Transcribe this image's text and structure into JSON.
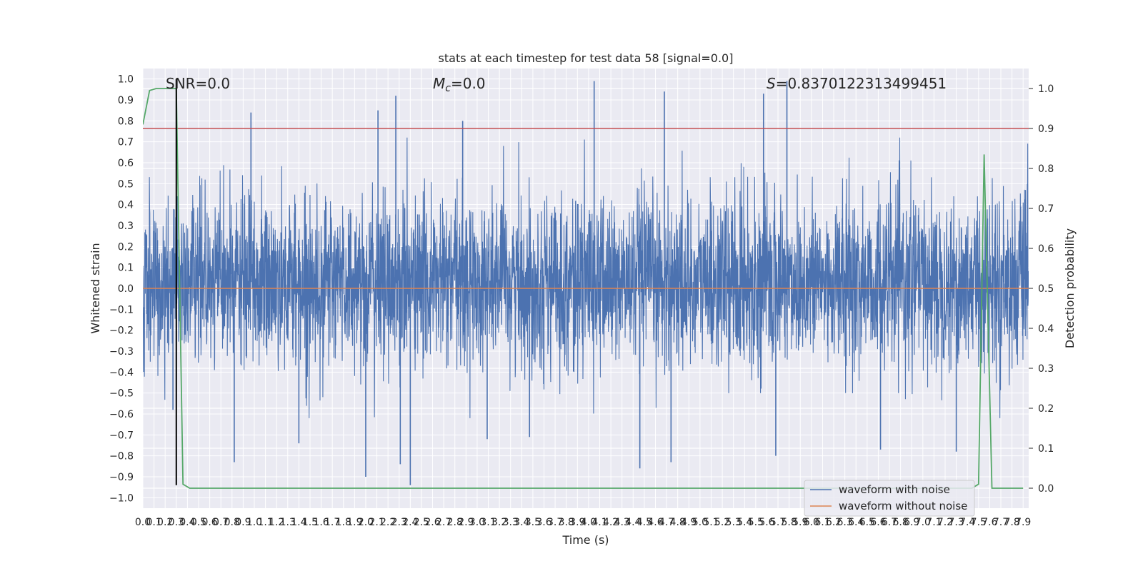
{
  "chart_data": {
    "type": "line",
    "title": "stats at each timestep for test data 58 [signal=0.0]",
    "xlabel": "Time (s)",
    "ylabel": "Whitened strain",
    "y2label": "Detection probability",
    "xlim": [
      0.0,
      7.95
    ],
    "ylim": [
      -1.05,
      1.05
    ],
    "y2lim": [
      -0.05,
      1.05
    ],
    "x_ticks": [
      0.0,
      0.1,
      0.2,
      0.3,
      0.4,
      0.5,
      0.6,
      0.7,
      0.8,
      0.9,
      1.0,
      1.1,
      1.2,
      1.3,
      1.4,
      1.5,
      1.6,
      1.7,
      1.8,
      1.9,
      2.0,
      2.1,
      2.2,
      2.3,
      2.4,
      2.5,
      2.6,
      2.7,
      2.8,
      2.9,
      3.0,
      3.1,
      3.2,
      3.3,
      3.4,
      3.5,
      3.6,
      3.7,
      3.8,
      3.9,
      4.0,
      4.1,
      4.2,
      4.3,
      4.4,
      4.5,
      4.6,
      4.7,
      4.8,
      4.9,
      5.0,
      5.1,
      5.2,
      5.3,
      5.4,
      5.5,
      5.6,
      5.7,
      5.8,
      5.9,
      6.0,
      6.1,
      6.2,
      6.3,
      6.4,
      6.5,
      6.6,
      6.7,
      6.8,
      6.9,
      7.0,
      7.1,
      7.2,
      7.3,
      7.4,
      7.5,
      7.6,
      7.7,
      7.8,
      7.9
    ],
    "y_ticks": [
      -1.0,
      -0.9,
      -0.8,
      -0.7,
      -0.6,
      -0.5,
      -0.4,
      -0.3,
      -0.2,
      -0.1,
      0.0,
      0.1,
      0.2,
      0.3,
      0.4,
      0.5,
      0.6,
      0.7,
      0.8,
      0.9,
      1.0
    ],
    "y2_ticks": [
      0.0,
      0.1,
      0.2,
      0.3,
      0.4,
      0.5,
      0.6,
      0.7,
      0.8,
      0.9,
      1.0
    ],
    "annotations": {
      "snr": "SNR=0.0",
      "mc_symbol": "M",
      "mc_sub": "c",
      "mc_value": "=0.0",
      "s_symbol": "S",
      "s_value": "=0.8370122313499451"
    },
    "series": [
      {
        "name": "waveform with noise",
        "color": "#4c72b0",
        "kind": "noise",
        "y_axis": "left",
        "sample_rate": 512,
        "band": [
          -0.36,
          0.42
        ]
      },
      {
        "name": "waveform without noise",
        "color": "#dd8452",
        "y_axis": "left",
        "value": 0.0
      },
      {
        "name": "detection probability",
        "color": "#55a868",
        "y_axis": "right",
        "x": [
          0.0,
          0.06,
          0.12,
          0.18,
          0.24,
          0.3,
          0.36,
          0.42,
          7.38,
          7.44,
          7.5,
          7.55,
          7.62,
          7.7,
          7.9
        ],
        "y": [
          0.91,
          0.995,
          1.0,
          1.0,
          1.0,
          1.0,
          0.01,
          0.0,
          0.0,
          0.0,
          0.01,
          0.835,
          0.0,
          0.0,
          0.0
        ]
      },
      {
        "name": "threshold",
        "color": "#c44e52",
        "y_axis": "right",
        "value": 0.9
      },
      {
        "name": "marker",
        "color": "#000000",
        "y_axis": "left",
        "x": 0.3,
        "y_from": -0.94,
        "y_to": 1.0
      }
    ],
    "noise_spikes": [
      {
        "t": 0.97,
        "v": 0.84
      },
      {
        "t": 2.11,
        "v": 0.85
      },
      {
        "t": 2.27,
        "v": 0.92
      },
      {
        "t": 4.05,
        "v": 0.99
      },
      {
        "t": 4.68,
        "v": 0.94
      },
      {
        "t": 5.57,
        "v": 0.93
      },
      {
        "t": 5.78,
        "v": 0.99
      },
      {
        "t": 2.87,
        "v": 0.8
      },
      {
        "t": 2.4,
        "v": -0.94
      },
      {
        "t": 2.0,
        "v": -0.9
      },
      {
        "t": 0.82,
        "v": -0.83
      },
      {
        "t": 2.31,
        "v": -0.84
      },
      {
        "t": 4.46,
        "v": -0.86
      },
      {
        "t": 4.74,
        "v": -0.83
      },
      {
        "t": 5.68,
        "v": -0.8
      },
      {
        "t": 6.62,
        "v": -0.77
      },
      {
        "t": 7.3,
        "v": -0.78
      },
      {
        "t": 0.27,
        "v": -0.58
      },
      {
        "t": 1.4,
        "v": -0.74
      },
      {
        "t": 3.09,
        "v": -0.72
      },
      {
        "t": 3.47,
        "v": -0.71
      }
    ],
    "legend": {
      "position": "bottom-right",
      "entries": [
        "waveform with noise",
        "waveform without noise"
      ]
    },
    "grid": true
  }
}
